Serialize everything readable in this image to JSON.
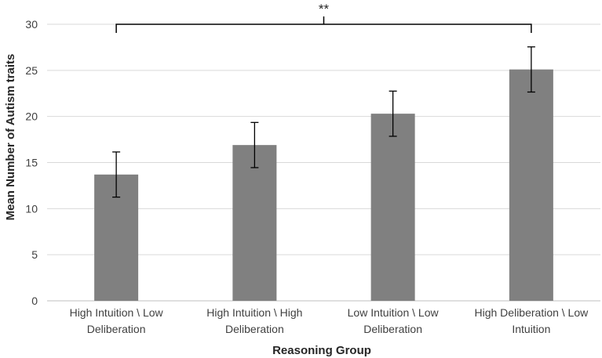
{
  "chart_data": {
    "type": "bar",
    "title": "",
    "xlabel": "Reasoning Group",
    "ylabel": "Mean Number of Autism traits",
    "categories": [
      [
        "High Intuition \\ Low",
        "Deliberation"
      ],
      [
        "High Intuition \\ High",
        "Deliberation"
      ],
      [
        "Low Intuition \\ Low",
        "Deliberation"
      ],
      [
        "High Deliberation \\ Low",
        "Intuition"
      ]
    ],
    "values": [
      13.7,
      16.9,
      20.3,
      25.1
    ],
    "error": [
      2.45,
      2.45,
      2.45,
      2.45
    ],
    "ylim": [
      0,
      30
    ],
    "yticks": [
      0,
      5,
      10,
      15,
      20,
      25,
      30
    ],
    "grid": true,
    "bar_color": "#808080",
    "grid_color": "#d9d9d9",
    "significance": {
      "label": "**",
      "from": 0,
      "to": 3
    }
  }
}
